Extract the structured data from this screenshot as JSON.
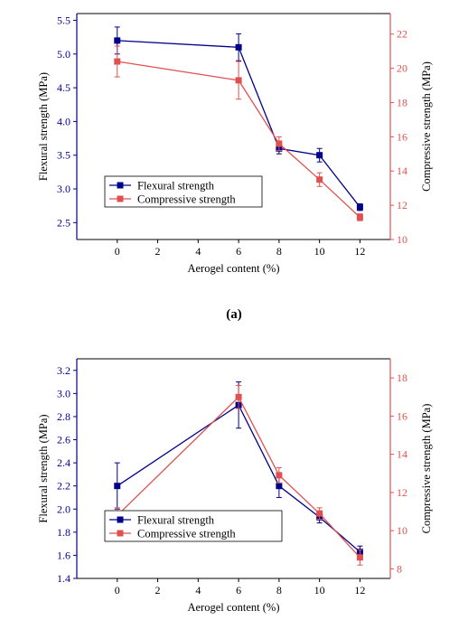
{
  "panel_labels": [
    "(a)"
  ],
  "colors": {
    "flexural": "#00008B",
    "compressive": "#E05050",
    "axis": "#000000"
  },
  "chart_data": [
    {
      "type": "line",
      "xlabel": "Aerogel content (%)",
      "ylabel_left": "Flexural strength (MPa)",
      "ylabel_right": "Compressive strength (MPa)",
      "xlim": [
        -2,
        13.5
      ],
      "ylim_left": [
        2.25,
        5.6
      ],
      "ylim_right": [
        10,
        23.2
      ],
      "x_ticks": [
        0,
        2,
        4,
        6,
        8,
        10,
        12
      ],
      "y_ticks_left": [
        2.5,
        3.0,
        3.5,
        4.0,
        4.5,
        5.0,
        5.5
      ],
      "y_tick_labels_left": [
        "2.5",
        "3.0",
        "3.5",
        "4.0",
        "4.5",
        "5.0",
        "5.5"
      ],
      "y_ticks_right": [
        10,
        12,
        14,
        16,
        18,
        20,
        22
      ],
      "legend_position": "lower-left",
      "series": [
        {
          "name": "Flexural strength",
          "axis": "left",
          "marker": "square",
          "x": [
            0,
            6,
            8,
            10,
            12
          ],
          "y": [
            5.2,
            5.1,
            3.6,
            3.5,
            2.73
          ],
          "err": [
            0.2,
            0.2,
            0.08,
            0.1,
            0.05
          ]
        },
        {
          "name": "Compressive strength",
          "axis": "right",
          "marker": "square",
          "x": [
            0,
            6,
            8,
            10,
            12
          ],
          "y": [
            20.4,
            19.3,
            15.6,
            13.5,
            11.3
          ],
          "err": [
            0.9,
            1.1,
            0.4,
            0.4,
            0.2
          ]
        }
      ]
    },
    {
      "type": "line",
      "xlabel": "Aerogel content (%)",
      "ylabel_left": "Flexural strength (MPa)",
      "ylabel_right": "Compressive strength (MPa)",
      "xlim": [
        -2,
        13.5
      ],
      "ylim_left": [
        1.4,
        3.3
      ],
      "ylim_right": [
        7.5,
        19
      ],
      "x_ticks": [
        0,
        2,
        4,
        6,
        8,
        10,
        12
      ],
      "y_ticks_left": [
        1.4,
        1.6,
        1.8,
        2.0,
        2.2,
        2.4,
        2.6,
        2.8,
        3.0,
        3.2
      ],
      "y_tick_labels_left": [
        "1.4",
        "1.6",
        "1.8",
        "2.0",
        "2.2",
        "2.4",
        "2.6",
        "2.8",
        "3.0",
        "3.2"
      ],
      "y_ticks_right": [
        8,
        10,
        12,
        14,
        16,
        18
      ],
      "legend_position": "lower-left",
      "series": [
        {
          "name": "Flexural strength",
          "axis": "left",
          "marker": "square",
          "x": [
            0,
            6,
            8,
            10,
            12
          ],
          "y": [
            2.2,
            2.9,
            2.2,
            1.93,
            1.63
          ],
          "err": [
            0.2,
            0.2,
            0.1,
            0.05,
            0.05
          ]
        },
        {
          "name": "Compressive strength",
          "axis": "right",
          "marker": "square",
          "x": [
            0,
            6,
            8,
            10,
            12
          ],
          "y": [
            10.8,
            17.0,
            12.9,
            10.9,
            8.6
          ],
          "err": [
            0.4,
            0.6,
            0.4,
            0.3,
            0.4
          ]
        }
      ]
    }
  ]
}
